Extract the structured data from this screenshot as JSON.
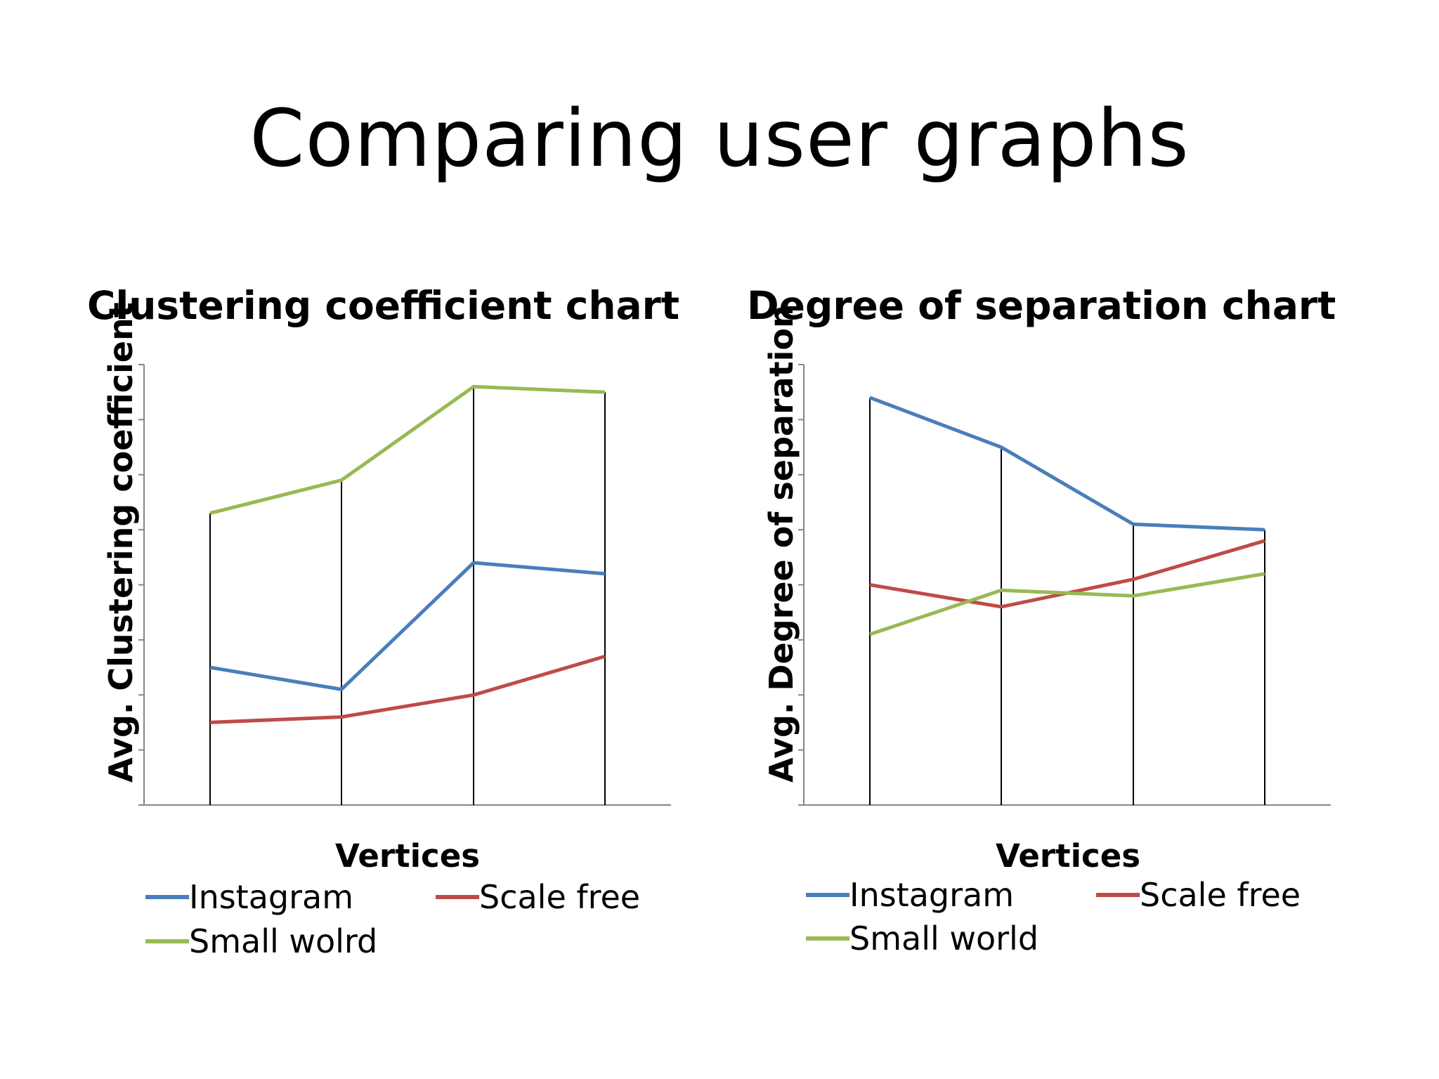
{
  "slide": {
    "title": "Comparing user graphs"
  },
  "colors": {
    "instagram": "#4a7ebb",
    "scale_free": "#be4b48",
    "small_world": "#98b954"
  },
  "chart_data": [
    {
      "type": "line",
      "title": "Clustering coefficient chart",
      "xlabel": "Vertices",
      "ylabel": "Avg. Clustering coefficient",
      "categories": [
        "",
        "",
        "",
        ""
      ],
      "ylim": [
        0,
        8
      ],
      "grid": false,
      "legend": "bottom",
      "series": [
        {
          "name": "Instagram",
          "color": "#4a7ebb",
          "values": [
            2.5,
            2.1,
            4.4,
            4.2
          ]
        },
        {
          "name": "Scale free",
          "color": "#be4b48",
          "values": [
            1.5,
            1.6,
            2.0,
            2.7
          ]
        },
        {
          "name": "Small wolrd",
          "color": "#98b954",
          "values": [
            5.3,
            5.9,
            7.6,
            7.5
          ]
        }
      ]
    },
    {
      "type": "line",
      "title": "Degree of separation chart",
      "xlabel": "Vertices",
      "ylabel": "Avg. Degree of separation",
      "categories": [
        "",
        "",
        "",
        ""
      ],
      "ylim": [
        0,
        8
      ],
      "grid": false,
      "legend": "bottom",
      "series": [
        {
          "name": "Instagram",
          "color": "#4a7ebb",
          "values": [
            7.4,
            6.5,
            5.1,
            5.0
          ]
        },
        {
          "name": "Scale free",
          "color": "#be4b48",
          "values": [
            4.0,
            3.6,
            4.1,
            4.8
          ]
        },
        {
          "name": "Small world",
          "color": "#98b954",
          "values": [
            3.1,
            3.9,
            3.8,
            4.2
          ]
        }
      ]
    }
  ]
}
